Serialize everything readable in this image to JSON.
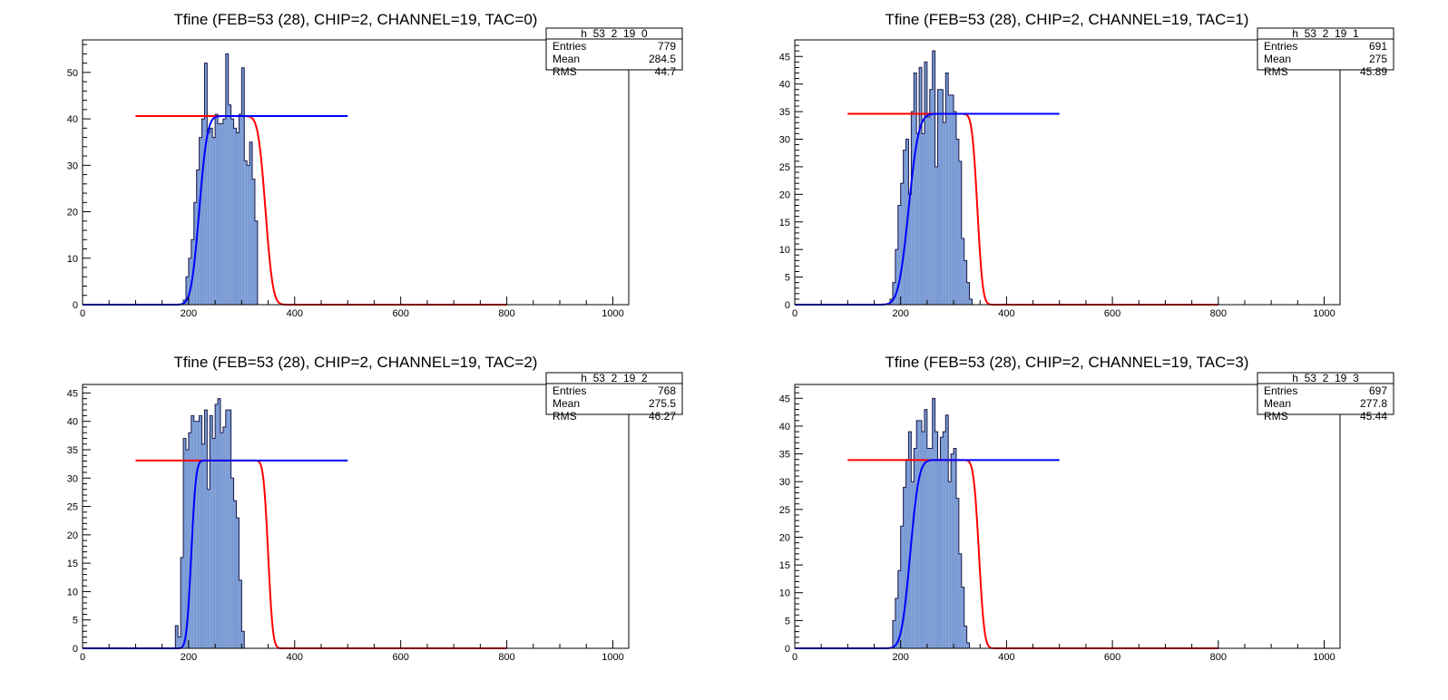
{
  "chart_data": [
    {
      "type": "bar",
      "title": "Tfine (FEB=53 (28), CHIP=2, CHANNEL=19, TAC=0)",
      "xlim": [
        0,
        1030
      ],
      "ylim": [
        0,
        57
      ],
      "xticks": [
        0,
        200,
        400,
        600,
        800,
        1000
      ],
      "yticks": [
        0,
        10,
        20,
        30,
        40,
        50
      ],
      "stats": {
        "name": "h_53_2_19_0",
        "rows": [
          [
            "Entries",
            "779"
          ],
          [
            "Mean",
            "284.5"
          ],
          [
            "RMS",
            "44.7"
          ]
        ]
      },
      "bin_start": 190,
      "bin_width": 5,
      "values": [
        1,
        6,
        10,
        14,
        22,
        29,
        36,
        40,
        52,
        37,
        38,
        36,
        41,
        39,
        39,
        40,
        54,
        43,
        40,
        38,
        37,
        41,
        51,
        31,
        30,
        35,
        27,
        18,
        0
      ],
      "fit": {
        "plateau": 40.6,
        "rise_mid": 220,
        "rise_sigma": 12,
        "fall_mid": 345,
        "fall_sigma": 11,
        "blue_range": [
          0,
          500
        ],
        "red_range": [
          100,
          800
        ]
      }
    },
    {
      "type": "bar",
      "title": "Tfine (FEB=53 (28), CHIP=2, CHANNEL=19, TAC=1)",
      "xlim": [
        0,
        1030
      ],
      "ylim": [
        0,
        48
      ],
      "xticks": [
        0,
        200,
        400,
        600,
        800,
        1000
      ],
      "yticks": [
        0,
        5,
        10,
        15,
        20,
        25,
        30,
        35,
        40,
        45
      ],
      "stats": {
        "name": "h_53_2_19_1",
        "rows": [
          [
            "Entries",
            "691"
          ],
          [
            "Mean",
            "275"
          ],
          [
            "RMS",
            "45.89"
          ]
        ]
      },
      "bin_start": 180,
      "bin_width": 5,
      "values": [
        1,
        4,
        10,
        18,
        22,
        28,
        30,
        20,
        35,
        42,
        31,
        43,
        31,
        44,
        34,
        39,
        46,
        25,
        39,
        39,
        33,
        42,
        38,
        38,
        35,
        30,
        26,
        12,
        8,
        4,
        1,
        0
      ],
      "fit": {
        "plateau": 34.6,
        "rise_mid": 215,
        "rise_sigma": 15,
        "fall_mid": 345,
        "fall_sigma": 8,
        "blue_range": [
          0,
          500
        ],
        "red_range": [
          100,
          800
        ]
      }
    },
    {
      "type": "bar",
      "title": "Tfine (FEB=53 (28), CHIP=2, CHANNEL=19, TAC=2)",
      "xlim": [
        0,
        1030
      ],
      "ylim": [
        0,
        46.5
      ],
      "xticks": [
        0,
        200,
        400,
        600,
        800,
        1000
      ],
      "yticks": [
        0,
        5,
        10,
        15,
        20,
        25,
        30,
        35,
        40,
        45
      ],
      "stats": {
        "name": "h_53_2_19_2",
        "rows": [
          [
            "Entries",
            "768"
          ],
          [
            "Mean",
            "275.5"
          ],
          [
            "RMS",
            "46.27"
          ]
        ]
      },
      "bin_start": 175,
      "bin_width": 5,
      "values": [
        4,
        2,
        16,
        37,
        35,
        38,
        41,
        40,
        40,
        41,
        36,
        42,
        28,
        41,
        37,
        43,
        44,
        38,
        39,
        42,
        42,
        30,
        26,
        23,
        12,
        3,
        0
      ],
      "fit": {
        "plateau": 33.1,
        "rise_mid": 205,
        "rise_sigma": 7,
        "fall_mid": 350,
        "fall_sigma": 7,
        "blue_range": [
          0,
          500
        ],
        "red_range": [
          100,
          800
        ]
      }
    },
    {
      "type": "bar",
      "title": "Tfine (FEB=53 (28), CHIP=2, CHANNEL=19, TAC=3)",
      "xlim": [
        0,
        1030
      ],
      "ylim": [
        0,
        47.5
      ],
      "xticks": [
        0,
        200,
        400,
        600,
        800,
        1000
      ],
      "yticks": [
        0,
        5,
        10,
        15,
        20,
        25,
        30,
        35,
        40,
        45
      ],
      "stats": {
        "name": "h_53_2_19_3",
        "rows": [
          [
            "Entries",
            "697"
          ],
          [
            "Mean",
            "277.8"
          ],
          [
            "RMS",
            "45.44"
          ]
        ]
      },
      "bin_start": 185,
      "bin_width": 5,
      "values": [
        5,
        9,
        14,
        22,
        29,
        34,
        39,
        30,
        36,
        41,
        41,
        39,
        43,
        36,
        36,
        45,
        39,
        34,
        38,
        39,
        42,
        30,
        35,
        36,
        27,
        17,
        11,
        4,
        1,
        0
      ],
      "fit": {
        "plateau": 33.9,
        "rise_mid": 218,
        "rise_sigma": 13,
        "fall_mid": 348,
        "fall_sigma": 8,
        "blue_range": [
          0,
          500
        ],
        "red_range": [
          100,
          800
        ]
      }
    }
  ]
}
